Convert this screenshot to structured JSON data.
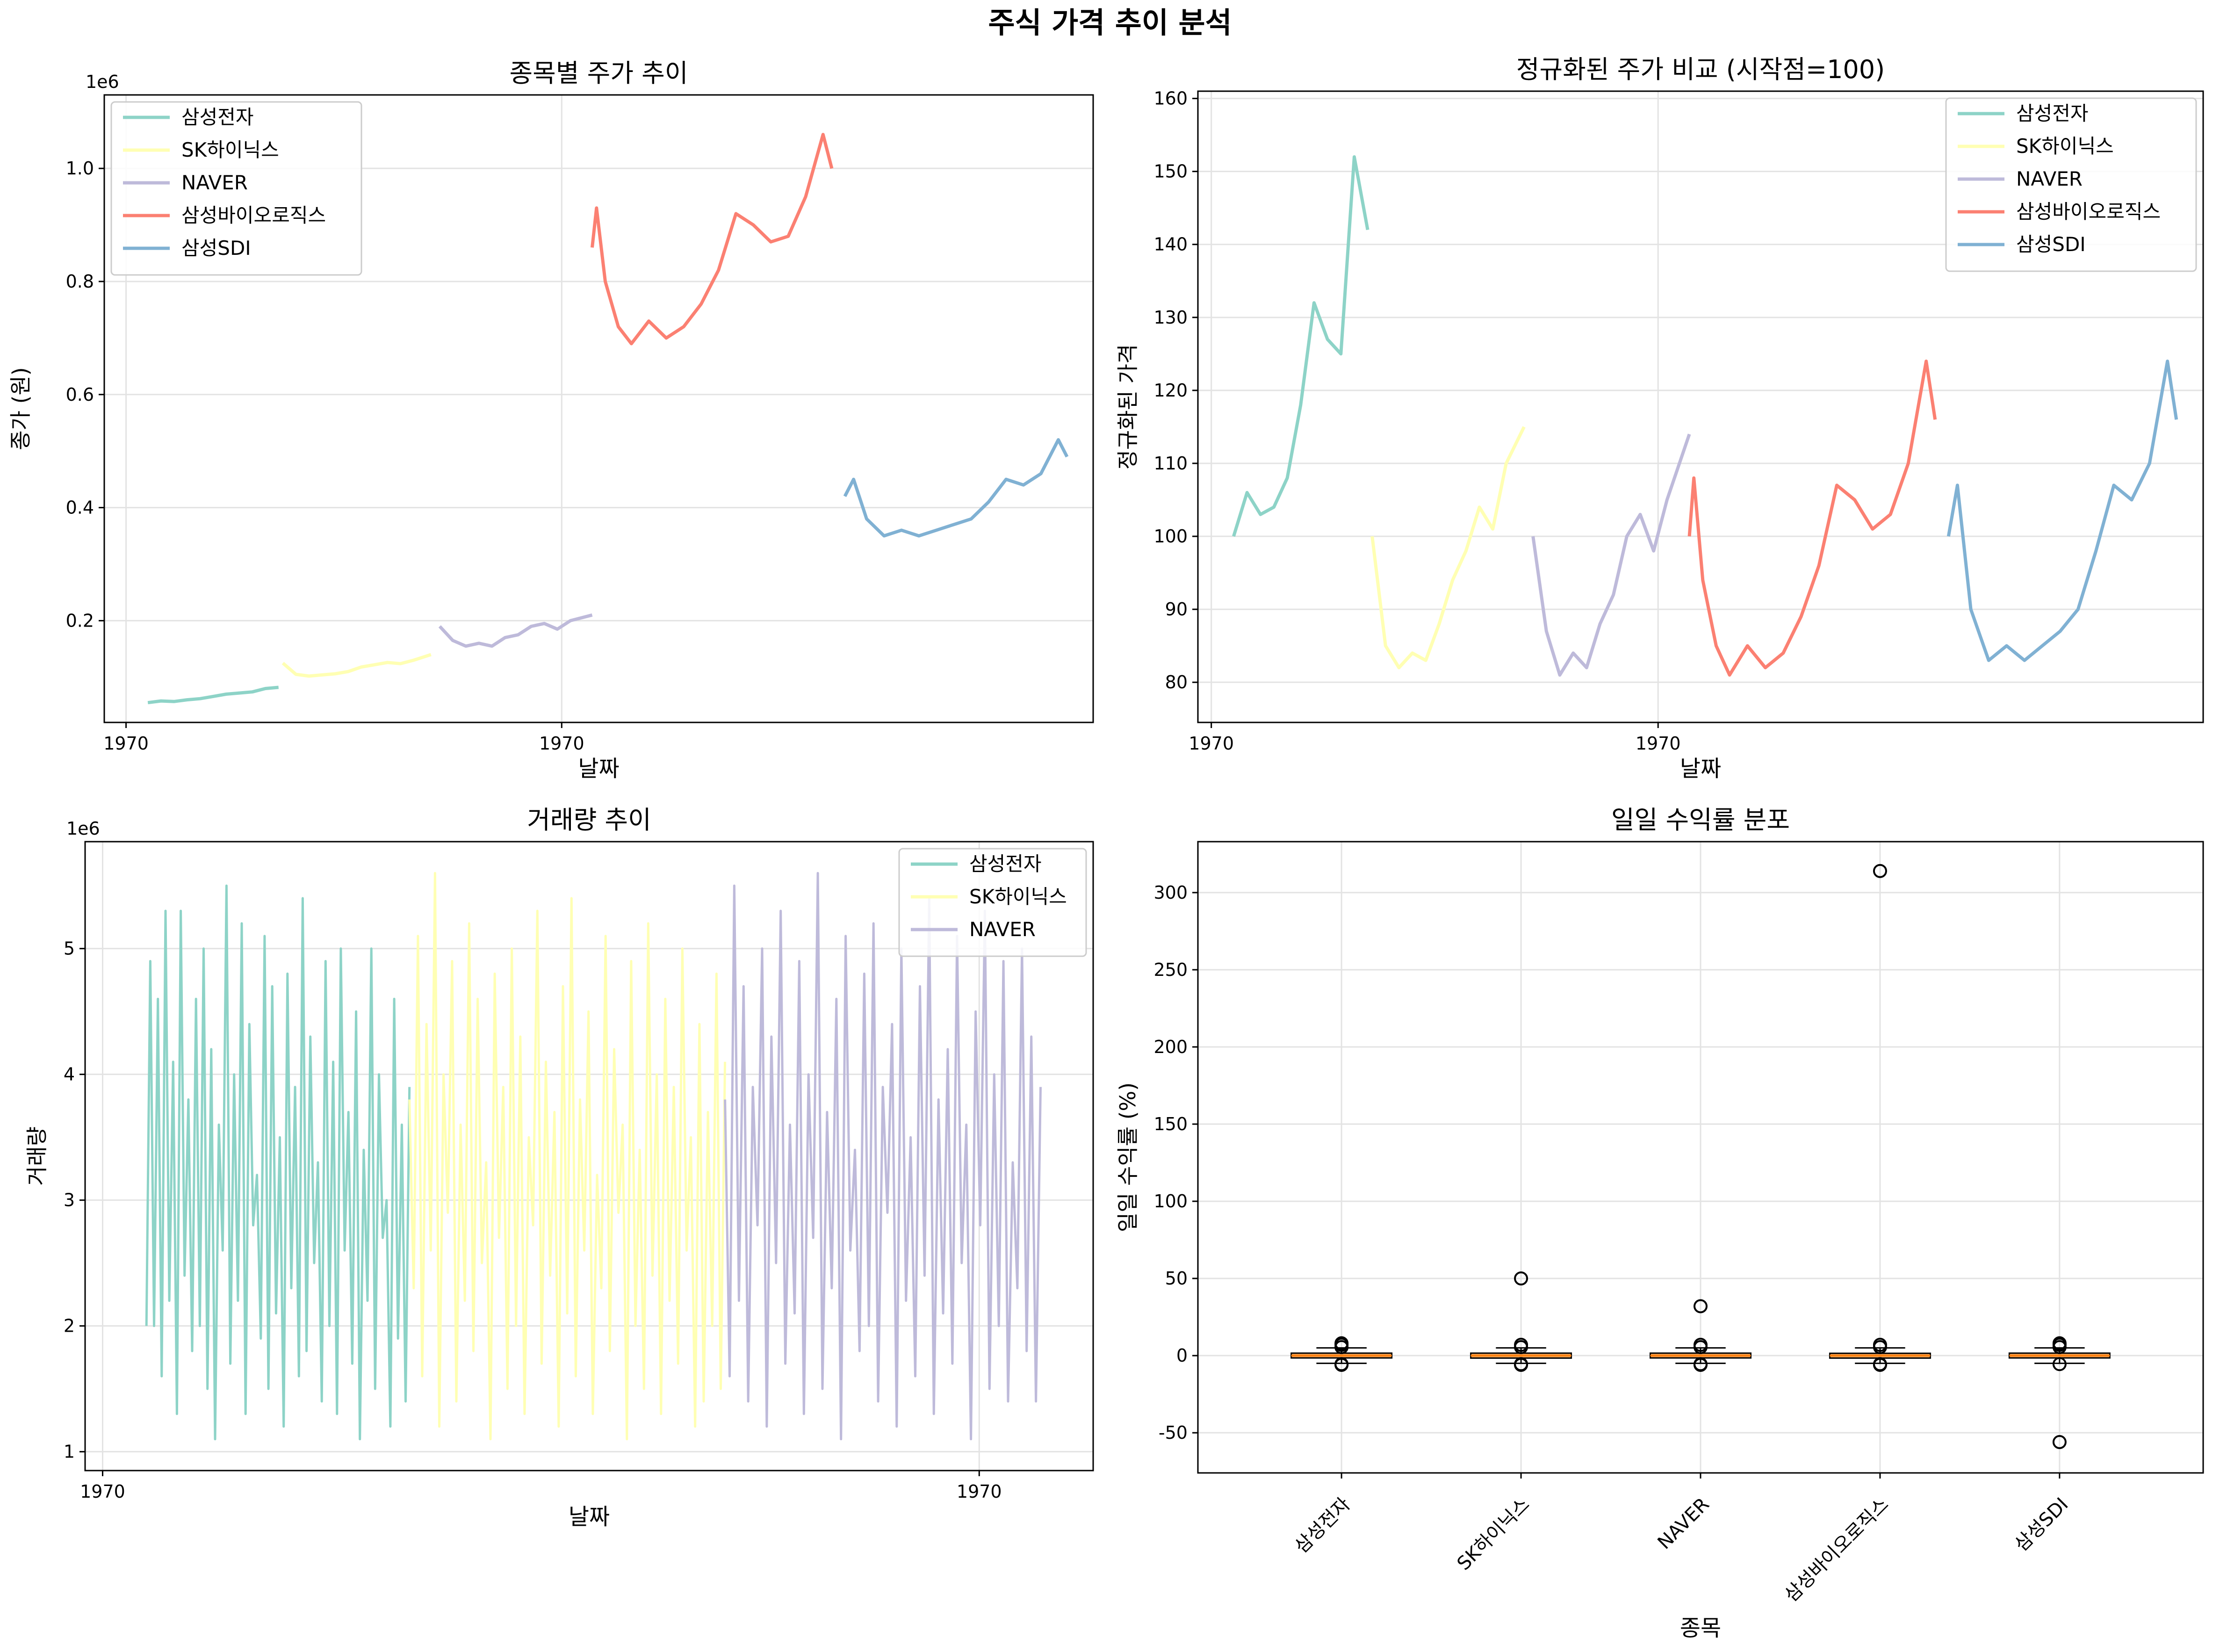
{
  "suptitle": "주식 가격 추이 분석",
  "colors": {
    "삼성전자": "#8dd3c7",
    "SK하이닉스": "#ffffb3",
    "NAVER": "#bebada",
    "삼성바이오로직스": "#fb8072",
    "삼성SDI": "#80b1d3",
    "box_median": "#ff7f0e",
    "box_fill": "#fdae61"
  },
  "chart_data": [
    {
      "type": "line",
      "title": "종목별 주가 추이",
      "xlabel": "날짜",
      "ylabel": "종가 (원)",
      "y_offset_label": "1e6",
      "ylim": [
        0.02,
        1.13
      ],
      "y_ticks": [
        0.2,
        0.4,
        0.6,
        0.8,
        1.0
      ],
      "y_tick_labels": [
        "0.2",
        "0.4",
        "0.6",
        "0.8",
        "1.0"
      ],
      "x_ticks": [
        0,
        1
      ],
      "x_tick_labels": [
        "1970",
        "1970"
      ],
      "grid": true,
      "legend": "upper-left",
      "series": [
        {
          "name": "삼성전자",
          "x": [
            0.05,
            0.08,
            0.11,
            0.14,
            0.17,
            0.2,
            0.23,
            0.26,
            0.29,
            0.32,
            0.35
          ],
          "values": [
            0.055,
            0.058,
            0.057,
            0.06,
            0.062,
            0.066,
            0.07,
            0.072,
            0.074,
            0.08,
            0.082
          ]
        },
        {
          "name": "SK하이닉스",
          "x": [
            0.36,
            0.39,
            0.42,
            0.45,
            0.48,
            0.51,
            0.54,
            0.57,
            0.6,
            0.63,
            0.66,
            0.7
          ],
          "values": [
            0.125,
            0.105,
            0.102,
            0.104,
            0.106,
            0.11,
            0.118,
            0.122,
            0.126,
            0.124,
            0.13,
            0.14
          ]
        },
        {
          "name": "NAVER",
          "x": [
            0.72,
            0.75,
            0.78,
            0.81,
            0.84,
            0.87,
            0.9,
            0.93,
            0.96,
            0.99,
            1.02,
            1.07
          ],
          "values": [
            0.19,
            0.165,
            0.155,
            0.16,
            0.155,
            0.17,
            0.175,
            0.19,
            0.195,
            0.185,
            0.2,
            0.21
          ]
        },
        {
          "name": "삼성바이오로직스",
          "x": [
            1.07,
            1.08,
            1.1,
            1.13,
            1.16,
            1.2,
            1.24,
            1.28,
            1.32,
            1.36,
            1.4,
            1.44,
            1.48,
            1.52,
            1.56,
            1.6,
            1.62
          ],
          "values": [
            0.86,
            0.93,
            0.8,
            0.72,
            0.69,
            0.73,
            0.7,
            0.72,
            0.76,
            0.82,
            0.92,
            0.9,
            0.87,
            0.88,
            0.95,
            1.06,
            1.0
          ]
        },
        {
          "name": "삼성SDI",
          "x": [
            1.65,
            1.67,
            1.7,
            1.74,
            1.78,
            1.82,
            1.86,
            1.9,
            1.94,
            1.98,
            2.02,
            2.06,
            2.1,
            2.14,
            2.16
          ],
          "values": [
            0.42,
            0.45,
            0.38,
            0.35,
            0.36,
            0.35,
            0.36,
            0.37,
            0.38,
            0.41,
            0.45,
            0.44,
            0.46,
            0.52,
            0.49
          ]
        }
      ]
    },
    {
      "type": "line",
      "title": "정규화된 주가 비교 (시작점=100)",
      "xlabel": "날짜",
      "ylabel": "정규화된 가격",
      "ylim": [
        74.5,
        161
      ],
      "y_ticks": [
        80,
        90,
        100,
        110,
        120,
        130,
        140,
        150,
        160
      ],
      "y_tick_labels": [
        "80",
        "90",
        "100",
        "110",
        "120",
        "130",
        "140",
        "150",
        "160"
      ],
      "x_ticks": [
        0,
        1
      ],
      "x_tick_labels": [
        "1970",
        "1970"
      ],
      "grid": true,
      "legend": "upper-right",
      "series": [
        {
          "name": "삼성전자",
          "x": [
            0.05,
            0.08,
            0.11,
            0.14,
            0.17,
            0.2,
            0.23,
            0.26,
            0.29,
            0.32,
            0.35
          ],
          "values": [
            100,
            106,
            103,
            104,
            108,
            118,
            132,
            127,
            125,
            152,
            142
          ]
        },
        {
          "name": "SK하이닉스",
          "x": [
            0.36,
            0.39,
            0.42,
            0.45,
            0.48,
            0.51,
            0.54,
            0.57,
            0.6,
            0.63,
            0.66,
            0.7
          ],
          "values": [
            100,
            85,
            82,
            84,
            83,
            88,
            94,
            98,
            104,
            101,
            110,
            115
          ]
        },
        {
          "name": "NAVER",
          "x": [
            0.72,
            0.75,
            0.78,
            0.81,
            0.84,
            0.87,
            0.9,
            0.93,
            0.96,
            0.99,
            1.02,
            1.07
          ],
          "values": [
            100,
            87,
            81,
            84,
            82,
            88,
            92,
            100,
            103,
            98,
            105,
            114
          ]
        },
        {
          "name": "삼성바이오로직스",
          "x": [
            1.07,
            1.08,
            1.1,
            1.13,
            1.16,
            1.2,
            1.24,
            1.28,
            1.32,
            1.36,
            1.4,
            1.44,
            1.48,
            1.52,
            1.56,
            1.6,
            1.62
          ],
          "values": [
            100,
            108,
            94,
            85,
            81,
            85,
            82,
            84,
            89,
            96,
            107,
            105,
            101,
            103,
            110,
            124,
            116
          ]
        },
        {
          "name": "삼성SDI",
          "x": [
            1.65,
            1.67,
            1.7,
            1.74,
            1.78,
            1.82,
            1.86,
            1.9,
            1.94,
            1.98,
            2.02,
            2.06,
            2.1,
            2.14,
            2.16
          ],
          "values": [
            100,
            107,
            90,
            83,
            85,
            83,
            85,
            87,
            90,
            98,
            107,
            105,
            110,
            124,
            116
          ]
        }
      ]
    },
    {
      "type": "line",
      "title": "거래량 추이",
      "xlabel": "날짜",
      "ylabel": "거래량",
      "y_offset_label": "1e6",
      "ylim": [
        0.85,
        5.85
      ],
      "y_ticks": [
        1,
        2,
        3,
        4,
        5
      ],
      "y_tick_labels": [
        "1",
        "2",
        "3",
        "4",
        "5"
      ],
      "x_ticks": [
        0,
        1
      ],
      "x_tick_labels": [
        "1970",
        "1970"
      ],
      "grid": true,
      "legend": "upper-right",
      "series": [
        {
          "name": "삼성전자",
          "x_range": [
            0.05,
            0.35
          ],
          "values": [
            2.0,
            4.9,
            2.0,
            4.6,
            1.6,
            5.3,
            2.2,
            4.1,
            1.3,
            5.3,
            2.4,
            3.8,
            1.8,
            4.6,
            2.0,
            5.0,
            1.5,
            4.2,
            1.1,
            3.6,
            2.6,
            5.5,
            1.7,
            4.0,
            2.2,
            5.2,
            1.3,
            4.4,
            2.8,
            3.2,
            1.9,
            5.1,
            1.5,
            4.7,
            2.1,
            3.5,
            1.2,
            4.8,
            2.3,
            3.9,
            1.6,
            5.4,
            1.8,
            4.3,
            2.5,
            3.3,
            1.4,
            4.9,
            2.0,
            4.1,
            1.3,
            5.0,
            2.6,
            3.7,
            1.7,
            4.5,
            1.1,
            3.4,
            2.2,
            5.0,
            1.5,
            4.0,
            2.7,
            3.0,
            1.2,
            4.6,
            1.9,
            3.6,
            1.4,
            3.9
          ]
        },
        {
          "name": "SK하이닉스",
          "x_range": [
            0.35,
            0.71
          ],
          "values": [
            3.8,
            2.3,
            5.1,
            1.6,
            4.4,
            2.6,
            5.6,
            1.2,
            4.0,
            2.9,
            4.9,
            1.4,
            3.6,
            2.2,
            5.2,
            1.8,
            4.6,
            2.5,
            3.3,
            1.1,
            4.8,
            2.7,
            3.9,
            1.5,
            5.0,
            2.0,
            4.3,
            1.3,
            3.5,
            2.8,
            5.3,
            1.7,
            4.1,
            2.4,
            3.7,
            1.2,
            4.7,
            2.1,
            5.4,
            1.6,
            3.8,
            2.6,
            4.5,
            1.3,
            3.2,
            2.3,
            5.1,
            1.8,
            4.2,
            2.9,
            3.6,
            1.1,
            4.9,
            2.0,
            3.4,
            1.5,
            5.2,
            2.4,
            4.0,
            1.3,
            4.6,
            2.2,
            3.9,
            1.7,
            5.0,
            2.6,
            3.5,
            1.2,
            4.4,
            1.4,
            3.7,
            2.0,
            4.8,
            1.5,
            4.1
          ]
        },
        {
          "name": "NAVER",
          "x_range": [
            0.71,
            1.07
          ],
          "values": [
            3.8,
            1.6,
            5.5,
            2.2,
            4.7,
            1.4,
            3.9,
            2.8,
            5.0,
            1.2,
            4.3,
            2.5,
            5.3,
            1.7,
            3.6,
            2.1,
            4.9,
            1.3,
            4.0,
            2.7,
            5.6,
            1.5,
            3.7,
            2.3,
            4.6,
            1.1,
            5.1,
            2.6,
            3.4,
            1.8,
            4.8,
            2.0,
            5.2,
            1.4,
            3.9,
            2.9,
            4.4,
            1.2,
            5.0,
            2.2,
            3.5,
            1.6,
            4.7,
            2.4,
            5.4,
            1.3,
            3.8,
            2.1,
            4.2,
            1.7,
            5.1,
            2.5,
            3.6,
            1.1,
            4.5,
            2.8,
            5.3,
            1.5,
            4.0,
            2.0,
            4.9,
            1.4,
            3.3,
            2.3,
            5.0,
            1.8,
            4.3,
            1.4,
            3.9
          ]
        }
      ]
    },
    {
      "type": "box",
      "title": "일일 수익률 분포",
      "xlabel": "종목",
      "ylabel": "일일 수익률 (%)",
      "ylim": [
        -76,
        333
      ],
      "y_ticks": [
        -50,
        0,
        50,
        100,
        150,
        200,
        250,
        300
      ],
      "y_tick_labels": [
        "-50",
        "0",
        "50",
        "100",
        "150",
        "200",
        "250",
        "300"
      ],
      "categories": [
        "삼성전자",
        "SK하이닉스",
        "NAVER",
        "삼성바이오로직스",
        "삼성SDI"
      ],
      "grid": true,
      "boxes": [
        {
          "q1": -1.5,
          "median": 0.0,
          "q3": 1.6,
          "whisker_low": -5.0,
          "whisker_high": 5.0,
          "fliers": [
            -6,
            -5.5,
            5.5,
            7,
            8
          ]
        },
        {
          "q1": -1.6,
          "median": 0.0,
          "q3": 1.6,
          "whisker_low": -5.0,
          "whisker_high": 5.0,
          "fliers": [
            -6,
            -5.5,
            5.5,
            7,
            50
          ]
        },
        {
          "q1": -1.5,
          "median": 0.0,
          "q3": 1.6,
          "whisker_low": -5.0,
          "whisker_high": 5.0,
          "fliers": [
            -6,
            -5.5,
            5.5,
            7,
            32
          ]
        },
        {
          "q1": -1.6,
          "median": 0.0,
          "q3": 1.5,
          "whisker_low": -5.0,
          "whisker_high": 5.0,
          "fliers": [
            -6,
            -5.5,
            5.5,
            7,
            314
          ]
        },
        {
          "q1": -1.5,
          "median": 0.0,
          "q3": 1.6,
          "whisker_low": -5.0,
          "whisker_high": 5.0,
          "fliers": [
            -56,
            -5.5,
            5.5,
            7,
            8
          ]
        }
      ]
    }
  ]
}
